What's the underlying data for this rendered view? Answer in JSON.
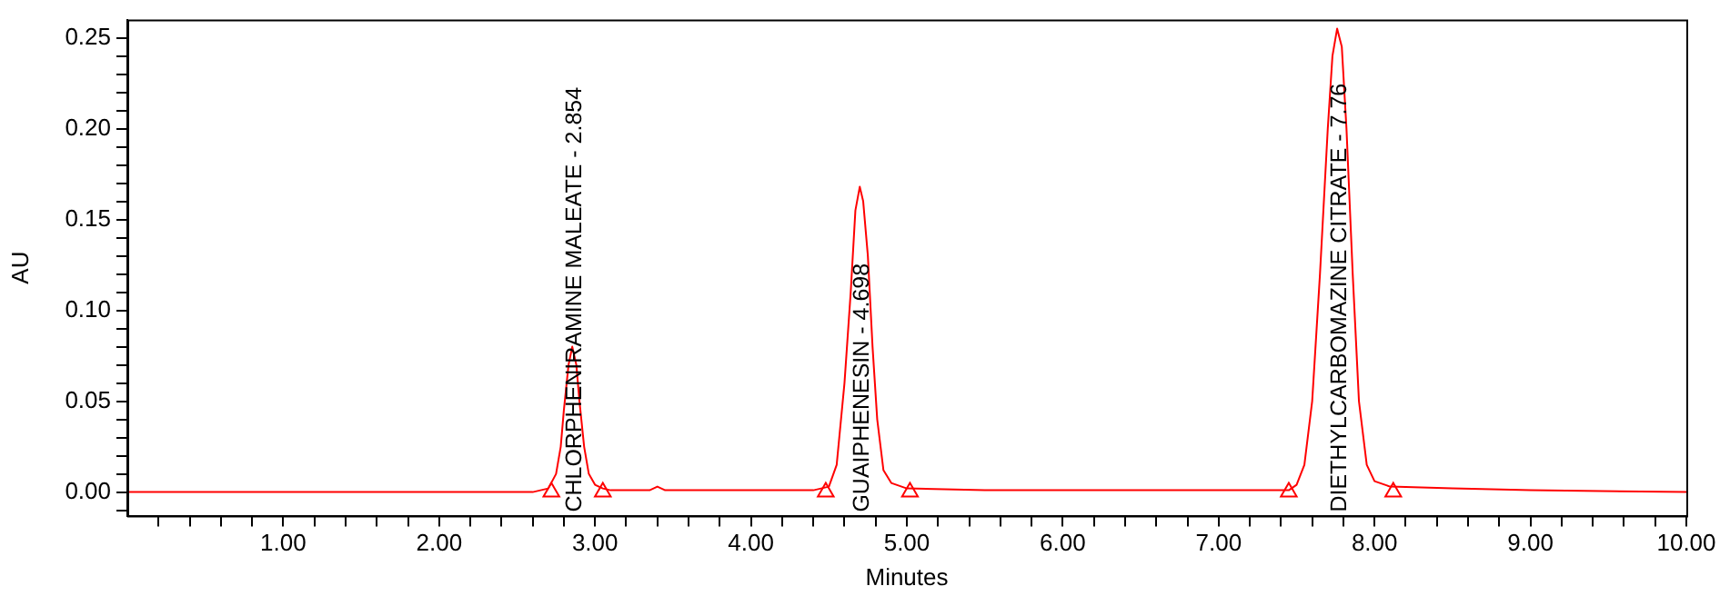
{
  "chart_data": {
    "type": "line",
    "xlabel": "Minutes",
    "ylabel": "AU",
    "xlim": [
      0,
      10
    ],
    "ylim": [
      -0.013,
      0.26
    ],
    "xticks": [
      {
        "value": 0.2,
        "label": null
      },
      {
        "value": 0.4,
        "label": null
      },
      {
        "value": 0.6,
        "label": null
      },
      {
        "value": 0.8,
        "label": null
      },
      {
        "value": 1,
        "label": "1.00"
      },
      {
        "value": 1.2,
        "label": null
      },
      {
        "value": 1.4,
        "label": null
      },
      {
        "value": 1.6,
        "label": null
      },
      {
        "value": 1.8,
        "label": null
      },
      {
        "value": 2,
        "label": "2.00"
      },
      {
        "value": 2.2,
        "label": null
      },
      {
        "value": 2.4,
        "label": null
      },
      {
        "value": 2.6,
        "label": null
      },
      {
        "value": 2.8,
        "label": null
      },
      {
        "value": 3,
        "label": "3.00"
      },
      {
        "value": 3.2,
        "label": null
      },
      {
        "value": 3.4,
        "label": null
      },
      {
        "value": 3.6,
        "label": null
      },
      {
        "value": 3.8,
        "label": null
      },
      {
        "value": 4,
        "label": "4.00"
      },
      {
        "value": 4.2,
        "label": null
      },
      {
        "value": 4.4,
        "label": null
      },
      {
        "value": 4.6,
        "label": null
      },
      {
        "value": 4.8,
        "label": null
      },
      {
        "value": 5,
        "label": "5.00"
      },
      {
        "value": 5.2,
        "label": null
      },
      {
        "value": 5.4,
        "label": null
      },
      {
        "value": 5.6,
        "label": null
      },
      {
        "value": 5.8,
        "label": null
      },
      {
        "value": 6,
        "label": "6.00"
      },
      {
        "value": 6.2,
        "label": null
      },
      {
        "value": 6.4,
        "label": null
      },
      {
        "value": 6.6,
        "label": null
      },
      {
        "value": 6.8,
        "label": null
      },
      {
        "value": 7,
        "label": "7.00"
      },
      {
        "value": 7.2,
        "label": null
      },
      {
        "value": 7.4,
        "label": null
      },
      {
        "value": 7.6,
        "label": null
      },
      {
        "value": 7.8,
        "label": null
      },
      {
        "value": 8,
        "label": "8.00"
      },
      {
        "value": 8.2,
        "label": null
      },
      {
        "value": 8.4,
        "label": null
      },
      {
        "value": 8.6,
        "label": null
      },
      {
        "value": 8.8,
        "label": null
      },
      {
        "value": 9,
        "label": "9.00"
      },
      {
        "value": 9.2,
        "label": null
      },
      {
        "value": 9.4,
        "label": null
      },
      {
        "value": 9.6,
        "label": null
      },
      {
        "value": 9.8,
        "label": null
      },
      {
        "value": 10,
        "label": "10.00"
      }
    ],
    "yticks": [
      {
        "value": -0.01,
        "label": null
      },
      {
        "value": 0,
        "label": "0.00"
      },
      {
        "value": 0.01,
        "label": null
      },
      {
        "value": 0.02,
        "label": null
      },
      {
        "value": 0.03,
        "label": null
      },
      {
        "value": 0.04,
        "label": null
      },
      {
        "value": 0.05,
        "label": "0.05"
      },
      {
        "value": 0.06,
        "label": null
      },
      {
        "value": 0.07,
        "label": null
      },
      {
        "value": 0.08,
        "label": null
      },
      {
        "value": 0.09,
        "label": null
      },
      {
        "value": 0.1,
        "label": "0.10"
      },
      {
        "value": 0.11,
        "label": null
      },
      {
        "value": 0.12,
        "label": null
      },
      {
        "value": 0.13,
        "label": null
      },
      {
        "value": 0.14,
        "label": null
      },
      {
        "value": 0.15,
        "label": "0.15"
      },
      {
        "value": 0.16,
        "label": null
      },
      {
        "value": 0.17,
        "label": null
      },
      {
        "value": 0.18,
        "label": null
      },
      {
        "value": 0.19,
        "label": null
      },
      {
        "value": 0.2,
        "label": "0.20"
      },
      {
        "value": 0.21,
        "label": null
      },
      {
        "value": 0.22,
        "label": null
      },
      {
        "value": 0.23,
        "label": null
      },
      {
        "value": 0.24,
        "label": null
      },
      {
        "value": 0.25,
        "label": "0.25"
      }
    ],
    "grid": false,
    "legend": false,
    "series": [
      {
        "type": "line",
        "color": "#ff0000",
        "marker": "none",
        "x": [
          0,
          1,
          2,
          2.6,
          2.7,
          2.75,
          2.78,
          2.8,
          2.83,
          2.854,
          2.88,
          2.9,
          2.93,
          2.96,
          3,
          3.05,
          3.1,
          3.35,
          3.4,
          3.45,
          3.6,
          4,
          4.4,
          4.5,
          4.55,
          4.6,
          4.64,
          4.67,
          4.698,
          4.72,
          4.75,
          4.78,
          4.81,
          4.85,
          4.9,
          5,
          5.5,
          6,
          7,
          7.45,
          7.5,
          7.55,
          7.6,
          7.65,
          7.7,
          7.73,
          7.76,
          7.79,
          7.82,
          7.86,
          7.9,
          7.95,
          8,
          8.1,
          8.5,
          9,
          10
        ],
        "values": [
          0,
          0,
          0,
          0,
          0.002,
          0.01,
          0.025,
          0.045,
          0.07,
          0.08,
          0.07,
          0.05,
          0.025,
          0.01,
          0.004,
          0.002,
          0.001,
          0.001,
          0.003,
          0.001,
          0.001,
          0.001,
          0.001,
          0.003,
          0.015,
          0.06,
          0.11,
          0.155,
          0.168,
          0.16,
          0.13,
          0.08,
          0.04,
          0.012,
          0.005,
          0.002,
          0.001,
          0.001,
          0.001,
          0.001,
          0.004,
          0.015,
          0.05,
          0.12,
          0.2,
          0.24,
          0.255,
          0.245,
          0.2,
          0.12,
          0.05,
          0.015,
          0.006,
          0.003,
          0.002,
          0.001,
          0
        ]
      },
      {
        "type": "scatter",
        "color": "#ff0000",
        "marker": "triangle",
        "x": [
          2.72,
          3.05,
          4.48,
          5.02,
          7.45,
          8.12
        ],
        "values": [
          0,
          0,
          0,
          0,
          0,
          0
        ]
      }
    ],
    "annotations": [
      "CHLORPHENIRAMINE MALEATE - 2.854",
      "GUAIPHENESIN - 4.698",
      "DIETHYLCARBOMAZINE CITRATE - 7.76"
    ]
  }
}
